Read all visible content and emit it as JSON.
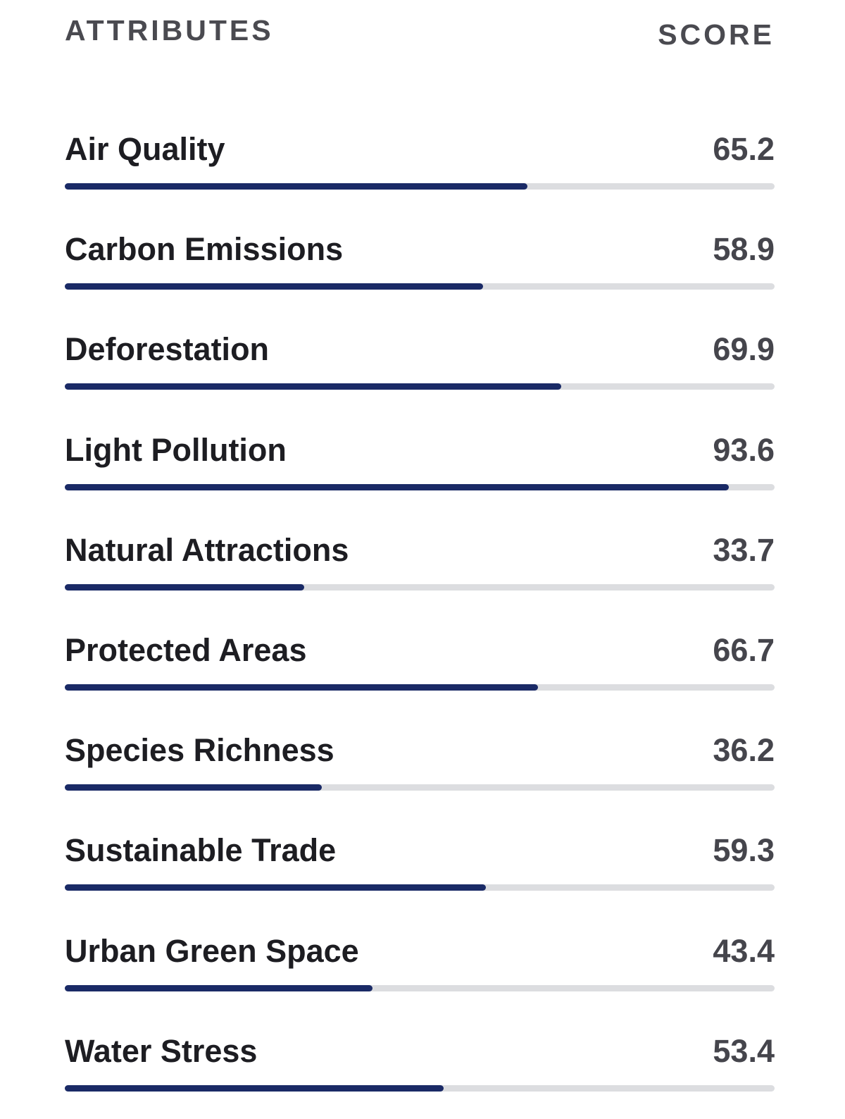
{
  "header": {
    "attributes_label": "ATTRIBUTES",
    "score_label": "SCORE"
  },
  "colors": {
    "bar_fill": "#1a2a66",
    "bar_track": "#dcdde0"
  },
  "chart_data": {
    "type": "bar",
    "orientation": "horizontal",
    "categories": [
      "Air Quality",
      "Carbon Emissions",
      "Deforestation",
      "Light Pollution",
      "Natural Attractions",
      "Protected Areas",
      "Species Richness",
      "Sustainable Trade",
      "Urban Green Space",
      "Water Stress"
    ],
    "values": [
      65.2,
      58.9,
      69.9,
      93.6,
      33.7,
      66.7,
      36.2,
      59.3,
      43.4,
      53.4
    ],
    "value_labels": [
      "65.2",
      "58.9",
      "69.9",
      "93.6",
      "33.7",
      "66.7",
      "36.2",
      "59.3",
      "43.4",
      "53.4"
    ],
    "xlim": [
      0,
      100
    ],
    "grid": false,
    "legend": "none"
  }
}
